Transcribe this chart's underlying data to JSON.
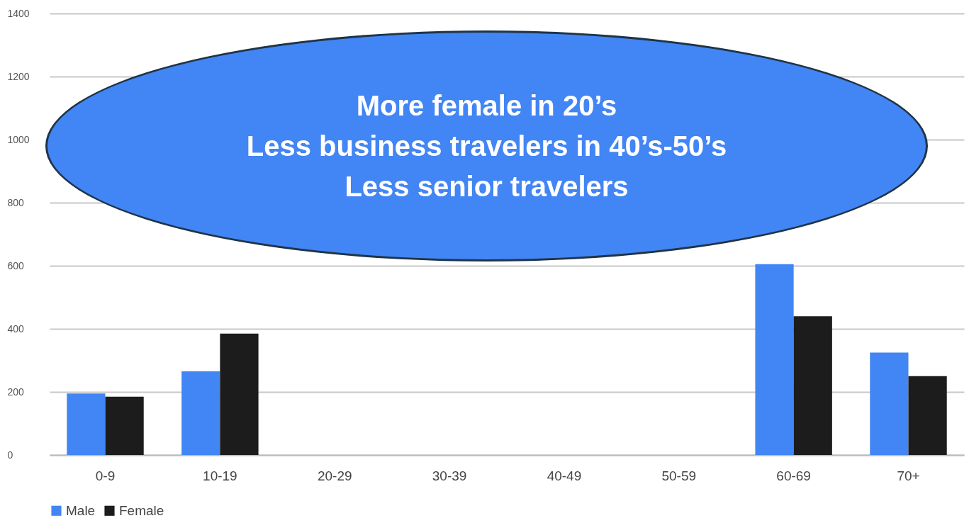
{
  "chart_data": {
    "type": "bar",
    "categories": [
      "0-9",
      "10-19",
      "20-29",
      "30-39",
      "40-49",
      "50-59",
      "60-69",
      "70+"
    ],
    "series": [
      {
        "name": "Male",
        "color": "#4285f4",
        "values": [
          195,
          265,
          null,
          null,
          null,
          null,
          605,
          325
        ]
      },
      {
        "name": "Female",
        "color": "#1c1c1c",
        "colors": [
          "#1c1c1c",
          "#1c1c1c",
          "#ff0000",
          "#1c1c1c",
          "#1c1c1c",
          "#1c1c1c",
          "#1c1c1c",
          "#1c1c1c"
        ],
        "values": [
          185,
          385,
          null,
          null,
          null,
          null,
          440,
          250
        ]
      }
    ],
    "ylim": [
      0,
      1400
    ],
    "yticks": [
      0,
      200,
      400,
      600,
      800,
      1000,
      1200,
      1400
    ],
    "grid": "y",
    "legend": "bottom",
    "annotations": [
      "More female in 20’s",
      "Less business travelers in 40’s-50’s",
      "Less senior travelers"
    ]
  }
}
